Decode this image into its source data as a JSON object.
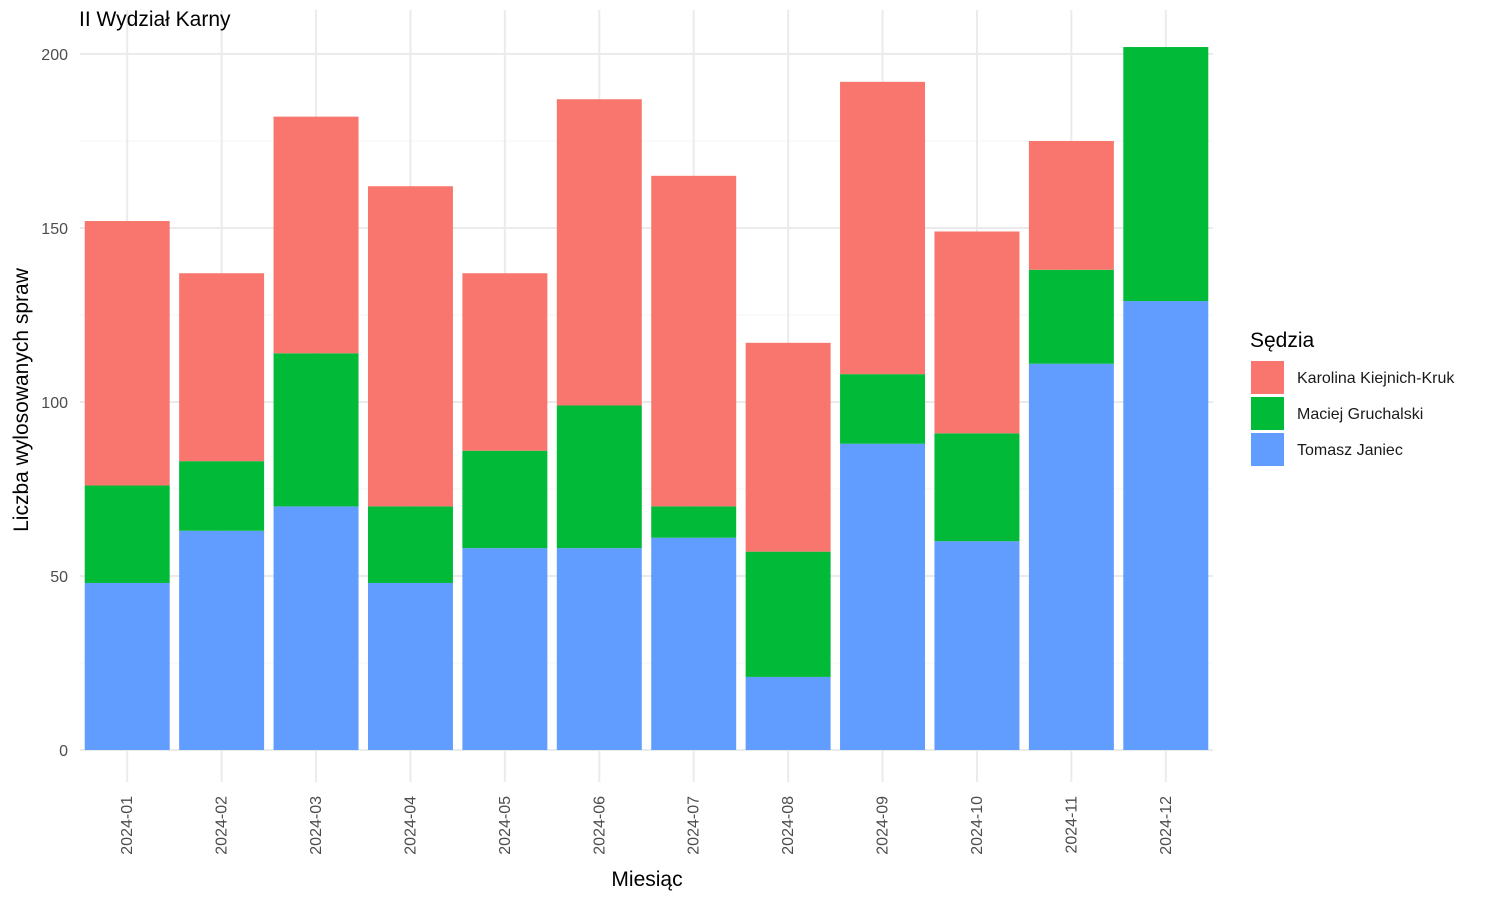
{
  "chart_data": {
    "type": "bar",
    "stacked": true,
    "title": "II Wydział Karny",
    "xlabel": "Miesiąc",
    "ylabel": "Liczba wylosowanych spraw",
    "ylim": [
      0,
      215
    ],
    "yticks": [
      "0",
      "50",
      "100",
      "150",
      "200"
    ],
    "grid": true,
    "legend_title": "Sędzia",
    "legend_position": "right",
    "categories": [
      "2024-01",
      "2024-02",
      "2024-03",
      "2024-04",
      "2024-05",
      "2024-06",
      "2024-07",
      "2024-08",
      "2024-09",
      "2024-10",
      "2024-11",
      "2024-12"
    ],
    "series": [
      {
        "name": "Tomasz Janiec",
        "color": "#619CFF",
        "values": [
          48,
          63,
          70,
          48,
          58,
          58,
          61,
          21,
          88,
          60,
          111,
          129
        ]
      },
      {
        "name": "Maciej Gruchalski",
        "color": "#00BA38",
        "values": [
          28,
          20,
          44,
          22,
          28,
          41,
          9,
          36,
          20,
          31,
          27,
          73
        ]
      },
      {
        "name": "Karolina Kiejnich-Kruk",
        "color": "#F8766D",
        "values": [
          76,
          54,
          68,
          92,
          51,
          88,
          95,
          60,
          84,
          58,
          37,
          0
        ]
      }
    ],
    "legend_order": [
      "Karolina Kiejnich-Kruk",
      "Maciej Gruchalski",
      "Tomasz Janiec"
    ]
  }
}
